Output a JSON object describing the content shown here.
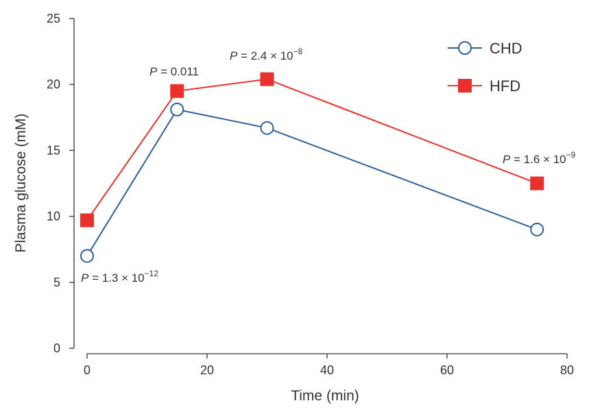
{
  "chart_data": {
    "type": "line",
    "xlabel": "Time (min)",
    "ylabel": "Plasma glucose (mM)",
    "xlim": [
      0,
      80
    ],
    "ylim": [
      0,
      25
    ],
    "xticks": [
      0,
      20,
      40,
      60,
      80
    ],
    "yticks": [
      0,
      5,
      10,
      15,
      20,
      25
    ],
    "grid": false,
    "legend_position": "top-right",
    "x": [
      0,
      15,
      30,
      75
    ],
    "series": [
      {
        "name": "CHD",
        "values": [
          7.0,
          18.1,
          16.7,
          9.0
        ],
        "color": "#2f5f9e",
        "marker": "open-circle"
      },
      {
        "name": "HFD",
        "values": [
          9.7,
          19.5,
          20.4,
          12.5
        ],
        "color": "#e8302c",
        "marker": "filled-square"
      }
    ],
    "annotations": [
      {
        "x": 0,
        "italic": "P",
        "text": " = 1.3 × 10",
        "sup": "−12"
      },
      {
        "x": 15,
        "italic": "P",
        "text": " = 0.011",
        "sup": ""
      },
      {
        "x": 30,
        "italic": "P",
        "text": " = 2.4 × 10",
        "sup": "−8"
      },
      {
        "x": 75,
        "italic": "P",
        "text": " = 1.6 × 10",
        "sup": "−9"
      }
    ]
  }
}
